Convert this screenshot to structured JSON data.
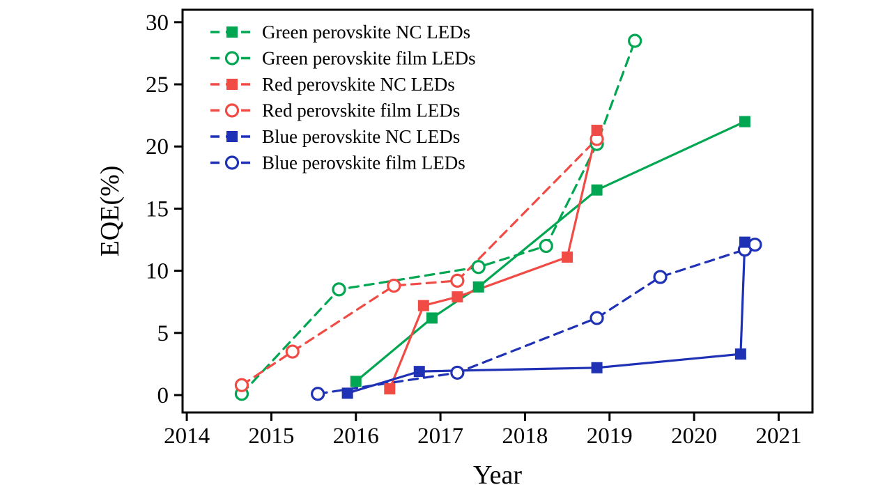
{
  "figure": {
    "xlabel": "Year",
    "ylabel": "EQE(%)"
  },
  "chart_data": {
    "type": "line",
    "title": "",
    "xlabel": "Year",
    "ylabel": "EQE(%)",
    "xlim": [
      2013.95,
      2021.4
    ],
    "ylim": [
      -1.4,
      31
    ],
    "x_ticks": [
      2014,
      2015,
      2016,
      2017,
      2018,
      2019,
      2020,
      2021
    ],
    "y_ticks": [
      0,
      5,
      10,
      15,
      20,
      25,
      30
    ],
    "grid": false,
    "legend_position": "top-left",
    "axis_color": "#000000",
    "series": [
      {
        "name": "Green perovskite NC LEDs",
        "color": "#00A651",
        "marker": "square-filled",
        "line": "solid",
        "points": [
          [
            2016.0,
            1.1
          ],
          [
            2016.9,
            6.2
          ],
          [
            2017.45,
            8.7
          ],
          [
            2018.85,
            16.5
          ],
          [
            2020.6,
            22.0
          ]
        ]
      },
      {
        "name": "Green perovskite film LEDs",
        "color": "#00A651",
        "marker": "circle-open",
        "line": "dashed",
        "points": [
          [
            2014.65,
            0.1
          ],
          [
            2015.8,
            8.5
          ],
          [
            2017.45,
            10.3
          ],
          [
            2018.25,
            12.0
          ],
          [
            2018.85,
            20.2
          ],
          [
            2019.3,
            28.5
          ]
        ]
      },
      {
        "name": "Red perovskite NC LEDs",
        "color": "#F04C45",
        "marker": "square-filled",
        "line": "solid",
        "points": [
          [
            2016.4,
            0.5
          ],
          [
            2016.8,
            7.2
          ],
          [
            2017.2,
            7.9
          ],
          [
            2018.5,
            11.1
          ],
          [
            2018.85,
            21.3
          ]
        ]
      },
      {
        "name": "Red perovskite film LEDs",
        "color": "#F04C45",
        "marker": "circle-open",
        "line": "dashed",
        "points": [
          [
            2014.65,
            0.8
          ],
          [
            2015.25,
            3.5
          ],
          [
            2016.45,
            8.8
          ],
          [
            2017.2,
            9.2
          ],
          [
            2018.85,
            20.6
          ]
        ]
      },
      {
        "name": "Blue perovskite NC LEDs",
        "color": "#1F31B4",
        "marker": "square-filled",
        "line": "solid",
        "points": [
          [
            2015.9,
            0.15
          ],
          [
            2016.75,
            1.9
          ],
          [
            2018.85,
            2.2
          ],
          [
            2020.55,
            3.3
          ],
          [
            2020.6,
            12.3
          ]
        ]
      },
      {
        "name": "Blue perovskite film LEDs",
        "marker": "circle-open",
        "color": "#1F31B4",
        "line": "dashed",
        "points": [
          [
            2015.55,
            0.1
          ],
          [
            2017.2,
            1.8
          ],
          [
            2018.85,
            6.2
          ],
          [
            2019.6,
            9.5
          ],
          [
            2020.6,
            11.7
          ],
          [
            2020.72,
            12.1
          ]
        ]
      }
    ]
  }
}
